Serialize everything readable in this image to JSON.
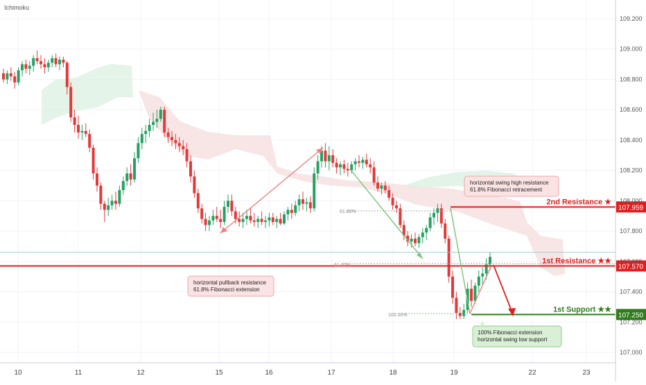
{
  "indicator_label": "Ichimoku",
  "chart_data": {
    "type": "candlestick",
    "y_axis": {
      "ticks": [
        "109.200",
        "109.000",
        "108.800",
        "108.600",
        "108.400",
        "108.200",
        "108.000",
        "107.800",
        "107.600",
        "107.400",
        "107.200",
        "107.000"
      ],
      "tick_values": [
        109.2,
        109.0,
        108.8,
        108.6,
        108.4,
        108.2,
        108.0,
        107.8,
        107.6,
        107.4,
        107.2,
        107.0
      ],
      "range": [
        106.95,
        109.35
      ]
    },
    "x_axis": {
      "ticks": [
        "10",
        "11",
        "12",
        "15",
        "16",
        "17",
        "18",
        "19",
        "22",
        "23"
      ],
      "range": [
        0,
        100
      ]
    },
    "levels": [
      {
        "name": "2nd Resistance ★",
        "value": 107.959,
        "label": "107.959",
        "color": "#e01e1e"
      },
      {
        "name": "1st Resistance ★★",
        "value": 107.57,
        "label": "107.570",
        "color": "#e01e1e"
      },
      {
        "name": "1st Support ★★",
        "value": 107.25,
        "label": "107.250",
        "color": "#2e7d1a"
      }
    ],
    "current_price": 107.66,
    "annotations": [
      {
        "id": "swing-high",
        "lines": [
          "horizontal swing high resistance",
          "61.8% Fibonacci retracement"
        ]
      },
      {
        "id": "pullback",
        "lines": [
          "horizontal pullback resistance",
          "61.8% Fibonacci extension"
        ]
      },
      {
        "id": "fib-ext",
        "lines": [
          "100% Fibonacci extension",
          "horizontal swing low support"
        ]
      }
    ],
    "fib_labels": [
      "61.80%",
      "61.80%",
      "100.00%"
    ],
    "candles": [
      {
        "t": 0.0,
        "o": 108.84,
        "h": 108.87,
        "l": 108.78,
        "c": 108.8
      },
      {
        "t": 0.6,
        "o": 108.8,
        "h": 108.86,
        "l": 108.77,
        "c": 108.84
      },
      {
        "t": 1.2,
        "o": 108.84,
        "h": 108.88,
        "l": 108.79,
        "c": 108.82
      },
      {
        "t": 1.8,
        "o": 108.82,
        "h": 108.85,
        "l": 108.74,
        "c": 108.78
      },
      {
        "t": 2.4,
        "o": 108.78,
        "h": 108.88,
        "l": 108.76,
        "c": 108.86
      },
      {
        "t": 3.0,
        "o": 108.86,
        "h": 108.92,
        "l": 108.82,
        "c": 108.9
      },
      {
        "t": 3.6,
        "o": 108.9,
        "h": 108.93,
        "l": 108.84,
        "c": 108.87
      },
      {
        "t": 4.2,
        "o": 108.87,
        "h": 108.92,
        "l": 108.83,
        "c": 108.89
      },
      {
        "t": 4.8,
        "o": 108.89,
        "h": 108.96,
        "l": 108.85,
        "c": 108.94
      },
      {
        "t": 5.4,
        "o": 108.94,
        "h": 108.99,
        "l": 108.9,
        "c": 108.92
      },
      {
        "t": 6.0,
        "o": 108.92,
        "h": 108.96,
        "l": 108.87,
        "c": 108.9
      },
      {
        "t": 6.6,
        "o": 108.9,
        "h": 108.94,
        "l": 108.84,
        "c": 108.88
      },
      {
        "t": 7.2,
        "o": 108.88,
        "h": 108.93,
        "l": 108.85,
        "c": 108.91
      },
      {
        "t": 7.8,
        "o": 108.91,
        "h": 108.96,
        "l": 108.88,
        "c": 108.94
      },
      {
        "t": 8.4,
        "o": 108.94,
        "h": 108.97,
        "l": 108.88,
        "c": 108.9
      },
      {
        "t": 9.0,
        "o": 108.9,
        "h": 108.95,
        "l": 108.86,
        "c": 108.93
      },
      {
        "t": 9.6,
        "o": 108.93,
        "h": 108.95,
        "l": 108.88,
        "c": 108.91
      },
      {
        "t": 10.2,
        "o": 108.91,
        "h": 108.92,
        "l": 108.7,
        "c": 108.75
      },
      {
        "t": 10.8,
        "o": 108.75,
        "h": 108.78,
        "l": 108.52,
        "c": 108.55
      },
      {
        "t": 11.4,
        "o": 108.55,
        "h": 108.6,
        "l": 108.45,
        "c": 108.5
      },
      {
        "t": 12.0,
        "o": 108.5,
        "h": 108.56,
        "l": 108.41,
        "c": 108.45
      },
      {
        "t": 12.6,
        "o": 108.45,
        "h": 108.5,
        "l": 108.4,
        "c": 108.46
      },
      {
        "t": 13.2,
        "o": 108.46,
        "h": 108.51,
        "l": 108.42,
        "c": 108.44
      },
      {
        "t": 13.8,
        "o": 108.44,
        "h": 108.47,
        "l": 108.32,
        "c": 108.35
      },
      {
        "t": 14.4,
        "o": 108.35,
        "h": 108.37,
        "l": 108.14,
        "c": 108.18
      },
      {
        "t": 15.0,
        "o": 108.18,
        "h": 108.22,
        "l": 108.06,
        "c": 108.1
      },
      {
        "t": 15.6,
        "o": 108.1,
        "h": 108.12,
        "l": 107.94,
        "c": 107.98
      },
      {
        "t": 16.2,
        "o": 107.98,
        "h": 108.0,
        "l": 107.86,
        "c": 107.94
      },
      {
        "t": 16.8,
        "o": 107.94,
        "h": 108.02,
        "l": 107.9,
        "c": 107.97
      },
      {
        "t": 17.4,
        "o": 107.97,
        "h": 108.04,
        "l": 107.94,
        "c": 108.0
      },
      {
        "t": 18.0,
        "o": 108.0,
        "h": 108.06,
        "l": 107.94,
        "c": 107.98
      },
      {
        "t": 18.6,
        "o": 107.98,
        "h": 108.1,
        "l": 107.96,
        "c": 108.07
      },
      {
        "t": 19.2,
        "o": 108.07,
        "h": 108.16,
        "l": 108.04,
        "c": 108.13
      },
      {
        "t": 19.8,
        "o": 108.13,
        "h": 108.22,
        "l": 108.1,
        "c": 108.18
      },
      {
        "t": 20.4,
        "o": 108.18,
        "h": 108.24,
        "l": 108.1,
        "c": 108.14
      },
      {
        "t": 21.0,
        "o": 108.14,
        "h": 108.32,
        "l": 108.12,
        "c": 108.28
      },
      {
        "t": 21.6,
        "o": 108.28,
        "h": 108.42,
        "l": 108.25,
        "c": 108.38
      },
      {
        "t": 22.2,
        "o": 108.38,
        "h": 108.48,
        "l": 108.34,
        "c": 108.44
      },
      {
        "t": 22.8,
        "o": 108.44,
        "h": 108.5,
        "l": 108.38,
        "c": 108.46
      },
      {
        "t": 23.4,
        "o": 108.46,
        "h": 108.54,
        "l": 108.42,
        "c": 108.5
      },
      {
        "t": 24.0,
        "o": 108.5,
        "h": 108.58,
        "l": 108.46,
        "c": 108.52
      },
      {
        "t": 24.6,
        "o": 108.52,
        "h": 108.6,
        "l": 108.48,
        "c": 108.54
      },
      {
        "t": 25.2,
        "o": 108.54,
        "h": 108.62,
        "l": 108.52,
        "c": 108.6
      },
      {
        "t": 25.8,
        "o": 108.6,
        "h": 108.62,
        "l": 108.42,
        "c": 108.45
      },
      {
        "t": 26.4,
        "o": 108.45,
        "h": 108.48,
        "l": 108.38,
        "c": 108.42
      },
      {
        "t": 27.0,
        "o": 108.42,
        "h": 108.46,
        "l": 108.36,
        "c": 108.4
      },
      {
        "t": 27.6,
        "o": 108.4,
        "h": 108.44,
        "l": 108.34,
        "c": 108.38
      },
      {
        "t": 28.2,
        "o": 108.38,
        "h": 108.42,
        "l": 108.32,
        "c": 108.36
      },
      {
        "t": 28.8,
        "o": 108.36,
        "h": 108.4,
        "l": 108.3,
        "c": 108.34
      },
      {
        "t": 29.4,
        "o": 108.34,
        "h": 108.38,
        "l": 108.22,
        "c": 108.26
      },
      {
        "t": 30.0,
        "o": 108.26,
        "h": 108.3,
        "l": 108.12,
        "c": 108.16
      },
      {
        "t": 30.6,
        "o": 108.16,
        "h": 108.2,
        "l": 108.02,
        "c": 108.05
      },
      {
        "t": 31.2,
        "o": 108.05,
        "h": 108.08,
        "l": 107.92,
        "c": 107.95
      },
      {
        "t": 31.8,
        "o": 107.95,
        "h": 107.98,
        "l": 107.85,
        "c": 107.88
      },
      {
        "t": 32.4,
        "o": 107.88,
        "h": 107.92,
        "l": 107.8,
        "c": 107.84
      },
      {
        "t": 33.0,
        "o": 107.84,
        "h": 107.9,
        "l": 107.8,
        "c": 107.87
      },
      {
        "t": 33.6,
        "o": 107.87,
        "h": 107.94,
        "l": 107.84,
        "c": 107.9
      },
      {
        "t": 34.2,
        "o": 107.9,
        "h": 107.96,
        "l": 107.86,
        "c": 107.88
      },
      {
        "t": 34.8,
        "o": 107.88,
        "h": 107.94,
        "l": 107.82,
        "c": 107.86
      },
      {
        "t": 35.4,
        "o": 107.86,
        "h": 108.0,
        "l": 107.84,
        "c": 107.96
      },
      {
        "t": 36.0,
        "o": 107.96,
        "h": 108.04,
        "l": 107.92,
        "c": 108.0
      },
      {
        "t": 36.6,
        "o": 108.0,
        "h": 108.04,
        "l": 107.9,
        "c": 107.93
      },
      {
        "t": 37.2,
        "o": 107.93,
        "h": 107.96,
        "l": 107.85,
        "c": 107.88
      },
      {
        "t": 37.8,
        "o": 107.88,
        "h": 107.93,
        "l": 107.83,
        "c": 107.86
      },
      {
        "t": 38.4,
        "o": 107.86,
        "h": 107.92,
        "l": 107.82,
        "c": 107.88
      },
      {
        "t": 39.0,
        "o": 107.88,
        "h": 107.94,
        "l": 107.84,
        "c": 107.9
      },
      {
        "t": 39.6,
        "o": 107.9,
        "h": 107.95,
        "l": 107.85,
        "c": 107.87
      },
      {
        "t": 40.2,
        "o": 107.87,
        "h": 107.92,
        "l": 107.83,
        "c": 107.86
      },
      {
        "t": 40.8,
        "o": 107.86,
        "h": 107.9,
        "l": 107.82,
        "c": 107.88
      },
      {
        "t": 41.4,
        "o": 107.88,
        "h": 107.93,
        "l": 107.84,
        "c": 107.86
      },
      {
        "t": 42.0,
        "o": 107.86,
        "h": 107.9,
        "l": 107.82,
        "c": 107.87
      },
      {
        "t": 42.6,
        "o": 107.87,
        "h": 107.92,
        "l": 107.83,
        "c": 107.89
      },
      {
        "t": 43.2,
        "o": 107.89,
        "h": 107.92,
        "l": 107.84,
        "c": 107.86
      },
      {
        "t": 43.8,
        "o": 107.86,
        "h": 107.9,
        "l": 107.82,
        "c": 107.88
      },
      {
        "t": 44.4,
        "o": 107.88,
        "h": 107.92,
        "l": 107.84,
        "c": 107.85
      },
      {
        "t": 45.0,
        "o": 107.85,
        "h": 107.93,
        "l": 107.84,
        "c": 107.91
      },
      {
        "t": 45.6,
        "o": 107.91,
        "h": 107.96,
        "l": 107.87,
        "c": 107.94
      },
      {
        "t": 46.2,
        "o": 107.94,
        "h": 107.98,
        "l": 107.88,
        "c": 107.92
      },
      {
        "t": 46.8,
        "o": 107.92,
        "h": 108.0,
        "l": 107.9,
        "c": 107.97
      },
      {
        "t": 47.4,
        "o": 107.97,
        "h": 108.04,
        "l": 107.93,
        "c": 108.01
      },
      {
        "t": 48.0,
        "o": 108.01,
        "h": 108.06,
        "l": 107.94,
        "c": 107.98
      },
      {
        "t": 48.6,
        "o": 107.98,
        "h": 108.02,
        "l": 107.93,
        "c": 107.99
      },
      {
        "t": 49.2,
        "o": 107.99,
        "h": 108.03,
        "l": 107.92,
        "c": 107.95
      },
      {
        "t": 49.8,
        "o": 107.95,
        "h": 108.22,
        "l": 107.93,
        "c": 108.18
      },
      {
        "t": 50.4,
        "o": 108.18,
        "h": 108.3,
        "l": 108.14,
        "c": 108.26
      },
      {
        "t": 51.0,
        "o": 108.26,
        "h": 108.36,
        "l": 108.22,
        "c": 108.33
      },
      {
        "t": 51.6,
        "o": 108.33,
        "h": 108.38,
        "l": 108.22,
        "c": 108.26
      },
      {
        "t": 52.2,
        "o": 108.26,
        "h": 108.36,
        "l": 108.2,
        "c": 108.3
      },
      {
        "t": 52.8,
        "o": 108.3,
        "h": 108.34,
        "l": 108.22,
        "c": 108.25
      },
      {
        "t": 53.4,
        "o": 108.25,
        "h": 108.28,
        "l": 108.18,
        "c": 108.22
      },
      {
        "t": 54.0,
        "o": 108.22,
        "h": 108.26,
        "l": 108.17,
        "c": 108.24
      },
      {
        "t": 54.6,
        "o": 108.24,
        "h": 108.27,
        "l": 108.18,
        "c": 108.21
      },
      {
        "t": 55.2,
        "o": 108.21,
        "h": 108.25,
        "l": 108.16,
        "c": 108.2
      },
      {
        "t": 55.8,
        "o": 108.2,
        "h": 108.26,
        "l": 108.18,
        "c": 108.24
      },
      {
        "t": 56.4,
        "o": 108.24,
        "h": 108.28,
        "l": 108.2,
        "c": 108.26
      },
      {
        "t": 57.0,
        "o": 108.26,
        "h": 108.3,
        "l": 108.22,
        "c": 108.25
      },
      {
        "t": 57.6,
        "o": 108.25,
        "h": 108.29,
        "l": 108.21,
        "c": 108.27
      },
      {
        "t": 58.2,
        "o": 108.27,
        "h": 108.31,
        "l": 108.22,
        "c": 108.24
      },
      {
        "t": 58.8,
        "o": 108.24,
        "h": 108.28,
        "l": 108.18,
        "c": 108.22
      },
      {
        "t": 59.4,
        "o": 108.22,
        "h": 108.26,
        "l": 108.1,
        "c": 108.12
      },
      {
        "t": 60.0,
        "o": 108.12,
        "h": 108.16,
        "l": 108.06,
        "c": 108.08
      },
      {
        "t": 60.6,
        "o": 108.08,
        "h": 108.12,
        "l": 108.04,
        "c": 108.1
      },
      {
        "t": 61.2,
        "o": 108.1,
        "h": 108.13,
        "l": 108.05,
        "c": 108.07
      },
      {
        "t": 61.8,
        "o": 108.07,
        "h": 108.1,
        "l": 108.0,
        "c": 108.02
      },
      {
        "t": 62.4,
        "o": 108.02,
        "h": 108.05,
        "l": 107.94,
        "c": 107.97
      },
      {
        "t": 63.0,
        "o": 107.97,
        "h": 108.0,
        "l": 107.92,
        "c": 107.95
      },
      {
        "t": 63.6,
        "o": 107.95,
        "h": 107.98,
        "l": 107.82,
        "c": 107.84
      },
      {
        "t": 64.2,
        "o": 107.84,
        "h": 107.87,
        "l": 107.74,
        "c": 107.77
      },
      {
        "t": 64.8,
        "o": 107.77,
        "h": 107.8,
        "l": 107.7,
        "c": 107.73
      },
      {
        "t": 65.4,
        "o": 107.73,
        "h": 107.78,
        "l": 107.69,
        "c": 107.75
      },
      {
        "t": 66.0,
        "o": 107.75,
        "h": 107.79,
        "l": 107.7,
        "c": 107.72
      },
      {
        "t": 66.6,
        "o": 107.72,
        "h": 107.78,
        "l": 107.69,
        "c": 107.76
      },
      {
        "t": 67.2,
        "o": 107.76,
        "h": 107.82,
        "l": 107.72,
        "c": 107.79
      },
      {
        "t": 67.8,
        "o": 107.79,
        "h": 107.84,
        "l": 107.74,
        "c": 107.82
      },
      {
        "t": 68.4,
        "o": 107.82,
        "h": 107.92,
        "l": 107.8,
        "c": 107.89
      },
      {
        "t": 69.0,
        "o": 107.89,
        "h": 107.95,
        "l": 107.84,
        "c": 107.92
      },
      {
        "t": 69.6,
        "o": 107.92,
        "h": 107.98,
        "l": 107.86,
        "c": 107.95
      },
      {
        "t": 70.2,
        "o": 107.95,
        "h": 107.98,
        "l": 107.82,
        "c": 107.85
      },
      {
        "t": 70.8,
        "o": 107.85,
        "h": 107.88,
        "l": 107.72,
        "c": 107.75
      },
      {
        "t": 71.4,
        "o": 107.75,
        "h": 107.77,
        "l": 107.46,
        "c": 107.5
      },
      {
        "t": 72.0,
        "o": 107.5,
        "h": 107.54,
        "l": 107.32,
        "c": 107.36
      },
      {
        "t": 72.6,
        "o": 107.36,
        "h": 107.4,
        "l": 107.22,
        "c": 107.26
      },
      {
        "t": 73.2,
        "o": 107.26,
        "h": 107.3,
        "l": 107.22,
        "c": 107.24
      },
      {
        "t": 73.8,
        "o": 107.24,
        "h": 107.32,
        "l": 107.22,
        "c": 107.28
      },
      {
        "t": 74.4,
        "o": 107.28,
        "h": 107.46,
        "l": 107.26,
        "c": 107.42
      },
      {
        "t": 75.0,
        "o": 107.42,
        "h": 107.48,
        "l": 107.3,
        "c": 107.34
      },
      {
        "t": 75.6,
        "o": 107.34,
        "h": 107.46,
        "l": 107.32,
        "c": 107.44
      },
      {
        "t": 76.2,
        "o": 107.44,
        "h": 107.54,
        "l": 107.4,
        "c": 107.5
      },
      {
        "t": 76.8,
        "o": 107.5,
        "h": 107.56,
        "l": 107.44,
        "c": 107.52
      },
      {
        "t": 77.4,
        "o": 107.52,
        "h": 107.62,
        "l": 107.48,
        "c": 107.58
      },
      {
        "t": 78.0,
        "o": 107.58,
        "h": 107.66,
        "l": 107.54,
        "c": 107.63
      }
    ]
  }
}
